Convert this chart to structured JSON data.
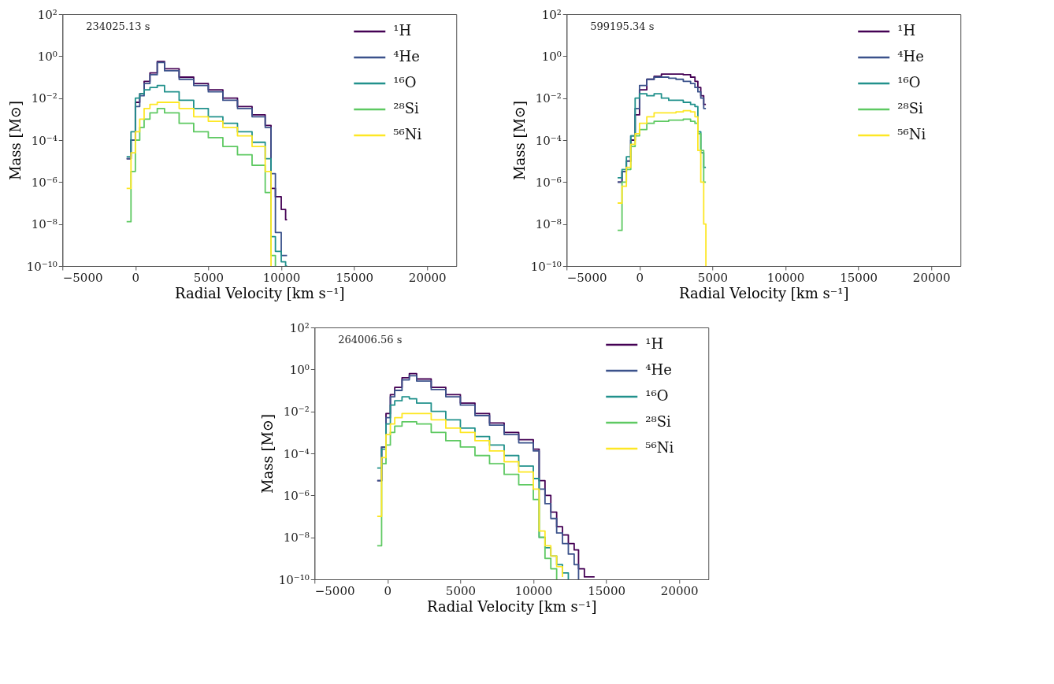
{
  "chart_data": [
    {
      "type": "step",
      "annotations": [
        "234025.13 s"
      ],
      "xlabel": "Radial Velocity [km s⁻¹]",
      "ylabel": "Mass [M⊙]",
      "log": "y",
      "grid": false,
      "legend": "top right",
      "xlim": [
        -5000,
        22000
      ],
      "xticks": [
        {
          "value": -5000,
          "label": "−5000"
        },
        0,
        5000,
        10000,
        15000,
        20000
      ],
      "ylim": [
        1e-10,
        100
      ],
      "yticks": [
        {
          "value": 100,
          "label": "10²"
        },
        {
          "value": 1,
          "label": "10⁰"
        },
        {
          "value": 0.01,
          "label": "10⁻²"
        },
        {
          "value": 0.0001,
          "label": "10⁻⁴"
        },
        {
          "value": 1e-06,
          "label": "10⁻⁶"
        },
        {
          "value": 1e-08,
          "label": "10⁻⁸"
        },
        {
          "value": 1e-10,
          "label": "10⁻¹⁰"
        }
      ],
      "x": [
        -600,
        -300,
        0,
        300,
        600,
        1000,
        1500,
        2000,
        3000,
        4000,
        5000,
        6000,
        7000,
        8000,
        8900,
        9300,
        9600,
        10000,
        10300,
        10400
      ],
      "series": [
        {
          "name": "¹H",
          "color": "#440154",
          "values": [
            1.3e-05,
            0.0001,
            0.0063,
            0.016,
            0.063,
            0.16,
            0.56,
            0.25,
            0.1,
            0.05,
            0.025,
            0.01,
            0.004,
            0.0016,
            0.0005,
            5e-07,
            2e-07,
            5e-08,
            1.6e-08,
            1.6e-08
          ]
        },
        {
          "name": "⁴He",
          "color": "#3b528b",
          "values": [
            1.3e-05,
            0.0001,
            0.004,
            0.013,
            0.05,
            0.13,
            0.5,
            0.2,
            0.079,
            0.04,
            0.02,
            0.0079,
            0.0032,
            0.0013,
            0.0004,
            2.5e-06,
            4e-09,
            3.2e-10,
            3.2e-10,
            3.2e-10
          ]
        },
        {
          "name": "¹⁶O",
          "color": "#21918c",
          "values": [
            1.6e-05,
            0.00025,
            0.01,
            0.016,
            0.025,
            0.032,
            0.04,
            0.02,
            0.0079,
            0.0032,
            0.0013,
            0.00063,
            0.00025,
            7.9e-05,
            1.3e-05,
            2.5e-09,
            5e-10,
            1.6e-10,
            1e-10,
            1e-10
          ]
        },
        {
          "name": "²⁸Si",
          "color": "#5ec962",
          "values": [
            1.3e-08,
            3.2e-06,
            0.0001,
            0.0004,
            0.001,
            0.002,
            0.0032,
            0.002,
            0.00063,
            0.00025,
            0.00013,
            5e-05,
            2e-05,
            6.3e-06,
            3.2e-07,
            3.2e-10,
            1e-10,
            null,
            null,
            null
          ]
        },
        {
          "name": "⁵⁶Ni",
          "color": "#fde725",
          "values": [
            5e-07,
            2.5e-05,
            0.00025,
            0.001,
            0.0032,
            0.005,
            0.0063,
            0.0063,
            0.0032,
            0.0013,
            0.00079,
            0.0004,
            0.00016,
            5e-05,
            3.2e-06,
            1e-10,
            null,
            null,
            null,
            null
          ]
        }
      ]
    },
    {
      "type": "step",
      "annotations": [
        "599195.34 s"
      ],
      "xlabel": "Radial Velocity [km s⁻¹]",
      "ylabel": "Mass [M⊙]",
      "log": "y",
      "grid": false,
      "legend": "top right",
      "xlim": [
        -5000,
        22000
      ],
      "xticks": [
        {
          "value": -5000,
          "label": "−5000"
        },
        0,
        5000,
        10000,
        15000,
        20000
      ],
      "ylim": [
        1e-10,
        100
      ],
      "yticks": [
        {
          "value": 100,
          "label": "10²"
        },
        {
          "value": 1,
          "label": "10⁰"
        },
        {
          "value": 0.01,
          "label": "10⁻²"
        },
        {
          "value": 0.0001,
          "label": "10⁻⁴"
        },
        {
          "value": 1e-06,
          "label": "10⁻⁶"
        },
        {
          "value": 1e-08,
          "label": "10⁻⁸"
        },
        {
          "value": 1e-10,
          "label": "10⁻¹⁰"
        }
      ],
      "x": [
        -1500,
        -1200,
        -900,
        -600,
        -300,
        0,
        500,
        1000,
        1500,
        2000,
        2500,
        3000,
        3500,
        3800,
        4000,
        4200,
        4400,
        4550
      ],
      "series": [
        {
          "name": "¹H",
          "color": "#440154",
          "values": [
            1e-06,
            3.2e-06,
            1e-05,
            0.0001,
            0.0016,
            0.025,
            0.079,
            0.11,
            0.14,
            0.14,
            0.14,
            0.13,
            0.1,
            0.063,
            0.032,
            0.013,
            0.005,
            0.005
          ]
        },
        {
          "name": "⁴He",
          "color": "#3b528b",
          "values": [
            1e-06,
            3.2e-06,
            1e-05,
            0.00016,
            0.0032,
            0.04,
            0.079,
            0.1,
            0.1,
            0.089,
            0.079,
            0.063,
            0.05,
            0.032,
            0.02,
            0.01,
            0.0032,
            0.0032
          ]
        },
        {
          "name": "¹⁶O",
          "color": "#21918c",
          "values": [
            1.6e-06,
            4e-06,
            1.6e-05,
            0.00016,
            0.01,
            0.016,
            0.013,
            0.016,
            0.01,
            0.0079,
            0.0079,
            0.0063,
            0.005,
            0.004,
            0.00025,
            2.5e-05,
            5e-06,
            5e-06
          ]
        },
        {
          "name": "²⁸Si",
          "color": "#5ec962",
          "values": [
            5e-09,
            1e-06,
            4e-06,
            5e-05,
            0.00016,
            0.00032,
            0.00063,
            0.00079,
            0.00079,
            0.00089,
            0.00089,
            0.001,
            0.00079,
            0.00063,
            0.0002,
            3.2e-05,
            1e-06,
            1e-06
          ]
        },
        {
          "name": "⁵⁶Ni",
          "color": "#fde725",
          "values": [
            1e-07,
            6.3e-07,
            5e-06,
            6.3e-05,
            0.0002,
            0.00063,
            0.0013,
            0.002,
            0.002,
            0.002,
            0.0022,
            0.0025,
            0.0022,
            0.0013,
            3.2e-05,
            1e-06,
            1e-08,
            1e-10
          ]
        }
      ]
    },
    {
      "type": "step",
      "annotations": [
        "264006.56 s"
      ],
      "xlabel": "Radial Velocity [km s⁻¹]",
      "ylabel": "Mass [M⊙]",
      "log": "y",
      "grid": false,
      "legend": "top right",
      "xlim": [
        -5000,
        22000
      ],
      "xticks": [
        {
          "value": -5000,
          "label": "−5000"
        },
        0,
        5000,
        10000,
        15000,
        20000
      ],
      "ylim": [
        1e-10,
        100
      ],
      "yticks": [
        {
          "value": 100,
          "label": "10²"
        },
        {
          "value": 1,
          "label": "10⁰"
        },
        {
          "value": 0.01,
          "label": "10⁻²"
        },
        {
          "value": 0.0001,
          "label": "10⁻⁴"
        },
        {
          "value": 1e-06,
          "label": "10⁻⁶"
        },
        {
          "value": 1e-08,
          "label": "10⁻⁸"
        },
        {
          "value": 1e-10,
          "label": "10⁻¹⁰"
        }
      ],
      "x": [
        -700,
        -400,
        -100,
        200,
        500,
        1000,
        1500,
        2000,
        3000,
        4000,
        5000,
        6000,
        7000,
        8000,
        9000,
        10000,
        10400,
        10800,
        11200,
        11600,
        12000,
        12400,
        12800,
        13100,
        13500,
        14000,
        14200
      ],
      "series": [
        {
          "name": "¹H",
          "color": "#440154",
          "values": [
            5e-06,
            0.0002,
            0.0079,
            0.063,
            0.14,
            0.4,
            0.63,
            0.35,
            0.14,
            0.063,
            0.025,
            0.0079,
            0.0028,
            0.001,
            0.00045,
            0.00016,
            5e-06,
            1e-06,
            1.6e-07,
            3.2e-08,
            1.3e-08,
            5e-09,
            2.5e-09,
            3.2e-10,
            1.3e-10,
            1.3e-10,
            1.3e-10
          ]
        },
        {
          "name": "⁴He",
          "color": "#3b528b",
          "values": [
            5e-06,
            0.0002,
            0.005,
            0.05,
            0.1,
            0.32,
            0.5,
            0.28,
            0.11,
            0.05,
            0.02,
            0.0063,
            0.0022,
            0.00079,
            0.00032,
            0.00013,
            2e-06,
            4e-07,
            7.9e-08,
            1.6e-08,
            5e-09,
            1.6e-09,
            5e-10,
            1e-10,
            null,
            null,
            null
          ]
        },
        {
          "name": "¹⁶O",
          "color": "#21918c",
          "values": [
            2e-05,
            0.00016,
            0.0025,
            0.02,
            0.032,
            0.05,
            0.04,
            0.025,
            0.01,
            0.004,
            0.0016,
            0.00063,
            0.00025,
            7.9e-05,
            2.5e-05,
            6.3e-06,
            1e-08,
            3.2e-09,
            1.3e-09,
            5e-10,
            2e-10,
            1e-10,
            null,
            null,
            null,
            null,
            null
          ]
        },
        {
          "name": "²⁸Si",
          "color": "#5ec962",
          "values": [
            4e-09,
            3.2e-05,
            0.00025,
            0.001,
            0.002,
            0.0032,
            0.0032,
            0.0025,
            0.001,
            0.0004,
            0.0002,
            7.9e-05,
            3.2e-05,
            1e-05,
            3.2e-06,
            6.3e-07,
            1e-08,
            1e-09,
            3.2e-10,
            1e-10,
            null,
            null,
            null,
            null,
            null,
            null,
            null
          ]
        },
        {
          "name": "⁵⁶Ni",
          "color": "#fde725",
          "values": [
            1e-07,
            6.3e-05,
            0.00079,
            0.0025,
            0.005,
            0.0079,
            0.0079,
            0.0079,
            0.004,
            0.0016,
            0.001,
            0.0004,
            0.00013,
            4e-05,
            1.3e-05,
            2e-06,
            2e-08,
            4e-09,
            1.3e-09,
            4e-10,
            1.3e-10,
            null,
            null,
            null,
            null,
            null,
            null
          ]
        }
      ]
    }
  ]
}
